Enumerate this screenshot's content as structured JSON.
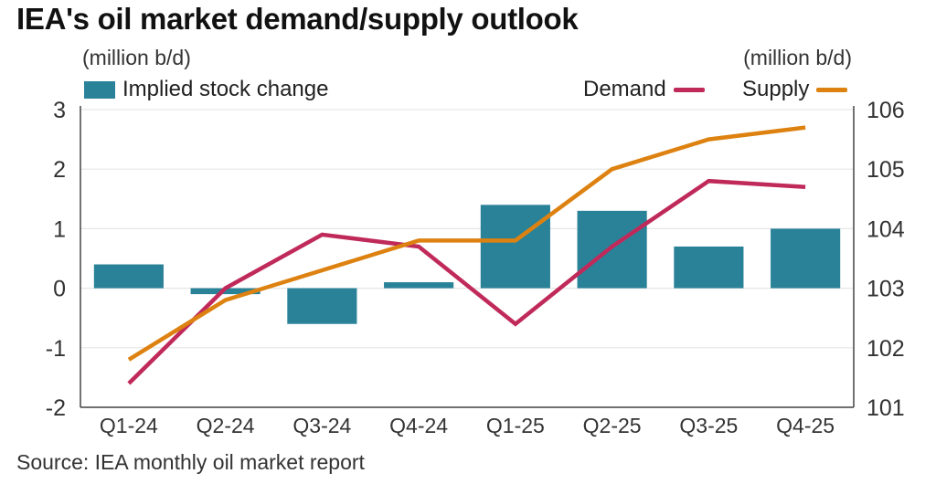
{
  "title": "IEA's oil market demand/supply outlook",
  "left_unit": "(million b/d)",
  "right_unit": "(million b/d)",
  "legend": {
    "bars": "Implied stock change",
    "demand": "Demand",
    "supply": "Supply"
  },
  "source": "Source: IEA monthly oil market report",
  "colors": {
    "bars": "#2a8299",
    "demand": "#c02a5a",
    "supply": "#dd8211",
    "axis": "#444444",
    "grid": "#e6e6e6"
  },
  "chart_data": {
    "type": "bar+line",
    "categories": [
      "Q1-24",
      "Q2-24",
      "Q3-24",
      "Q4-24",
      "Q1-25",
      "Q2-25",
      "Q3-25",
      "Q4-25"
    ],
    "bars": {
      "name": "Implied stock change",
      "axis": "left",
      "values": [
        0.4,
        -0.1,
        -0.6,
        0.1,
        1.4,
        1.3,
        0.7,
        1.0
      ]
    },
    "series": [
      {
        "name": "Demand",
        "axis": "right",
        "values": [
          101.4,
          103.0,
          103.9,
          103.7,
          102.4,
          103.7,
          104.8,
          104.7
        ]
      },
      {
        "name": "Supply",
        "axis": "right",
        "values": [
          101.8,
          102.8,
          103.3,
          103.8,
          103.8,
          105.0,
          105.5,
          105.7
        ]
      }
    ],
    "left_axis": {
      "ylim": [
        -2,
        3
      ],
      "ticks": [
        -2,
        -1,
        0,
        1,
        2,
        3
      ]
    },
    "right_axis": {
      "ylim": [
        101,
        106
      ],
      "ticks": [
        101,
        102,
        103,
        104,
        105,
        106
      ]
    },
    "grid": true,
    "legend_position": "top"
  }
}
